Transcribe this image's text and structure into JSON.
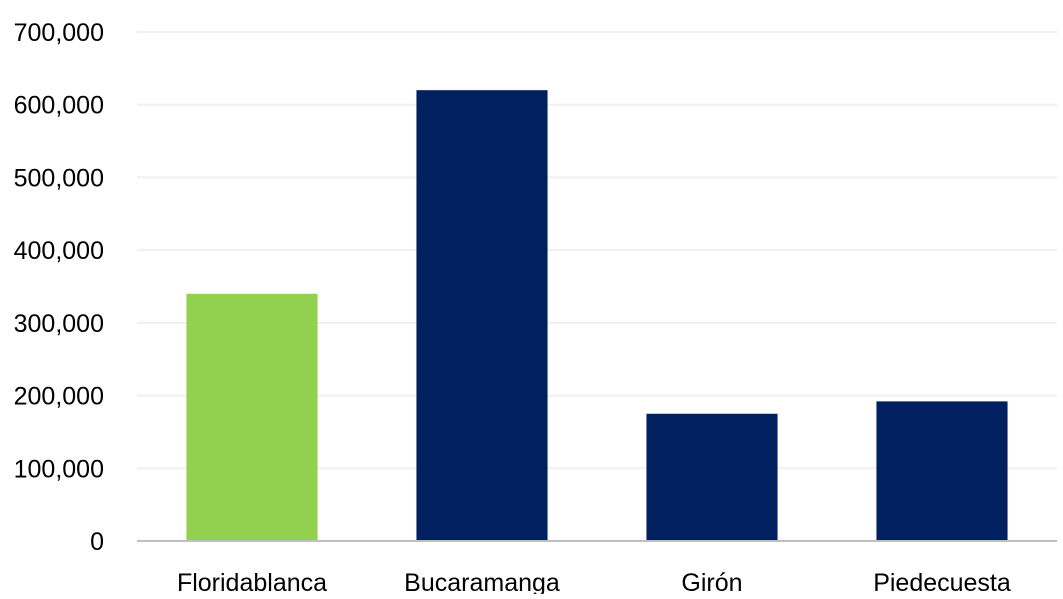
{
  "chart_data": {
    "type": "bar",
    "title": "",
    "xlabel": "",
    "ylabel": "",
    "categories": [
      "Floridablanca",
      "Bucaramanga",
      "Girón",
      "Piedecuesta"
    ],
    "values": [
      340000,
      620000,
      175000,
      192000
    ],
    "bar_colors": [
      "#92d050",
      "#002060",
      "#002060",
      "#002060"
    ],
    "ylim": [
      0,
      700000
    ],
    "yticks": [
      0,
      100000,
      200000,
      300000,
      400000,
      500000,
      600000,
      700000
    ],
    "ytick_labels": [
      "0",
      "100,000",
      "200,000",
      "300,000",
      "400,000",
      "500,000",
      "600,000",
      "700,000"
    ],
    "grid": true,
    "gridline_color": "#f0f0f0",
    "axis_color": "#bfbfbf",
    "legend": "none"
  }
}
